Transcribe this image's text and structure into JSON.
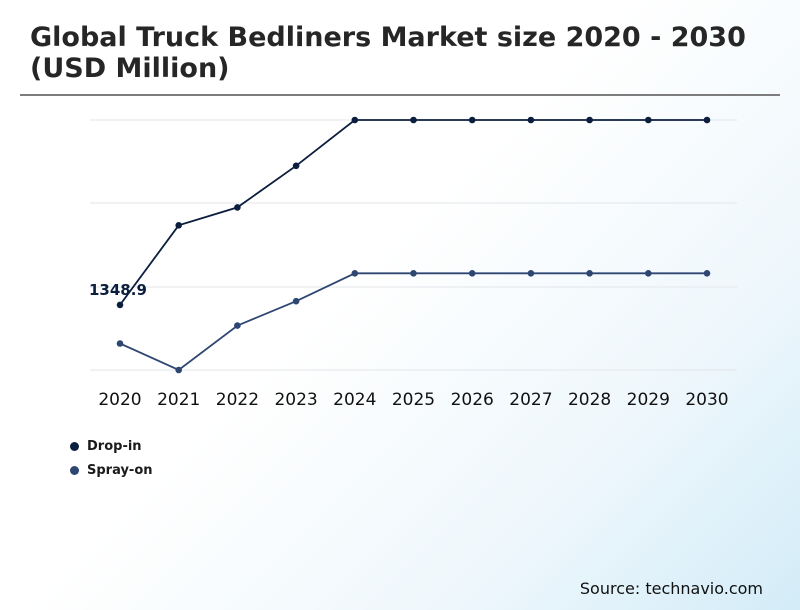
{
  "title": "Global Truck Bedliners Market size 2020 - 2030 (USD Million)",
  "source": "Source: technavio.com",
  "colors": {
    "drop_in": "#0c1e3e",
    "spray_on": "#2e4672",
    "grid": "#e2e6ea"
  },
  "chart_data": {
    "type": "line",
    "title": "Global Truck Bedliners Market size 2020 - 2030 (USD Million)",
    "xlabel": "",
    "ylabel": "",
    "x": [
      "2020",
      "2021",
      "2022",
      "2023",
      "2024",
      "2025",
      "2026",
      "2027",
      "2028",
      "2029",
      "2030"
    ],
    "ylim": [
      1150,
      1720
    ],
    "grid": true,
    "legend": "bottom-left",
    "series": [
      {
        "name": "Drop-in",
        "values": [
          1348.9,
          1460,
          1485,
          1543,
          1607,
          1607,
          1607,
          1607,
          1607,
          1607,
          1607
        ]
      },
      {
        "name": "Spray-on",
        "values": [
          1295,
          1258,
          1320,
          1354,
          1393,
          1393,
          1393,
          1393,
          1393,
          1393,
          1393
        ]
      }
    ],
    "annotations": [
      {
        "series": "Drop-in",
        "x": "2020",
        "text": "1348.9"
      }
    ]
  }
}
